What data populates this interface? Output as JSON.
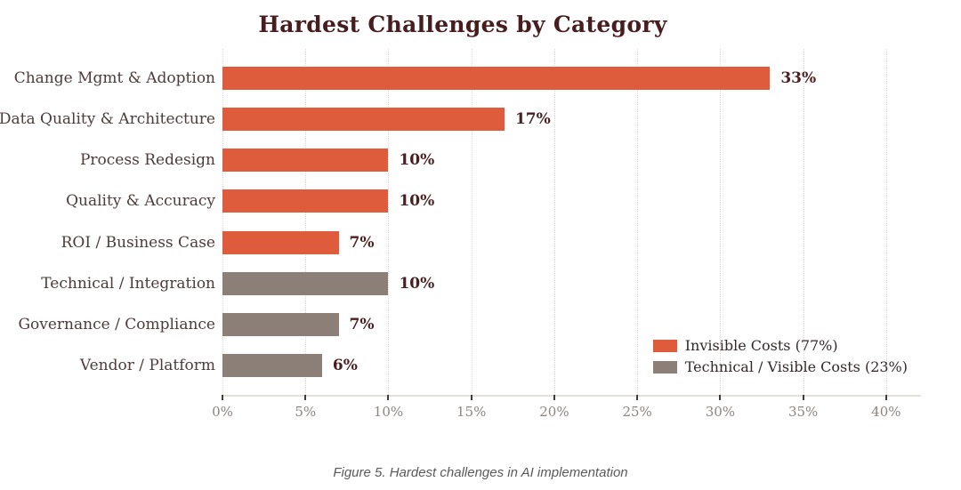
{
  "figure": {
    "title": "Hardest Challenges by Category",
    "caption": "Figure 5. Hardest challenges in AI implementation"
  },
  "chart_data": {
    "type": "bar",
    "orientation": "horizontal",
    "title": "Hardest Challenges by Category",
    "xlabel": "",
    "ylabel": "",
    "categories": [
      "Change Mgmt & Adoption",
      "Data Quality & Architecture",
      "Process Redesign",
      "Quality & Accuracy",
      "ROI / Business Case",
      "Technical / Integration",
      "Governance / Compliance",
      "Vendor / Platform"
    ],
    "values": [
      33,
      17,
      10,
      10,
      7,
      10,
      7,
      6
    ],
    "value_labels": [
      "33%",
      "17%",
      "10%",
      "10%",
      "7%",
      "10%",
      "7%",
      "6%"
    ],
    "series_of_bar": [
      "invisible",
      "invisible",
      "invisible",
      "invisible",
      "invisible",
      "technical",
      "technical",
      "technical"
    ],
    "series_colors": {
      "invisible": "#de5b3b",
      "technical": "#8b7f77"
    },
    "x_ticks": [
      "0%",
      "5%",
      "10%",
      "15%",
      "20%",
      "25%",
      "30%",
      "35%",
      "40%"
    ],
    "x_tick_values": [
      0,
      5,
      10,
      15,
      20,
      25,
      30,
      35,
      40
    ],
    "xlim": [
      0,
      42.1
    ],
    "grid": "vertical-dotted",
    "legend": {
      "position": "lower right",
      "entries": [
        {
          "label": "Invisible Costs (77%)",
          "color": "#de5b3b",
          "key": "invisible"
        },
        {
          "label": "Technical / Visible Costs (23%)",
          "color": "#8b7f77",
          "key": "technical"
        }
      ]
    }
  },
  "colors": {
    "title_text": "#471d1f",
    "category_text": "#4d3b3b",
    "value_text": "#4a1f21",
    "tick_text": "#8c8580",
    "gridline": "#ddd8d2",
    "axis_line": "#e3e0da",
    "tick_mark": "#3c3c3c",
    "legend_text": "#332929",
    "caption_text": "#5a5a5a"
  }
}
